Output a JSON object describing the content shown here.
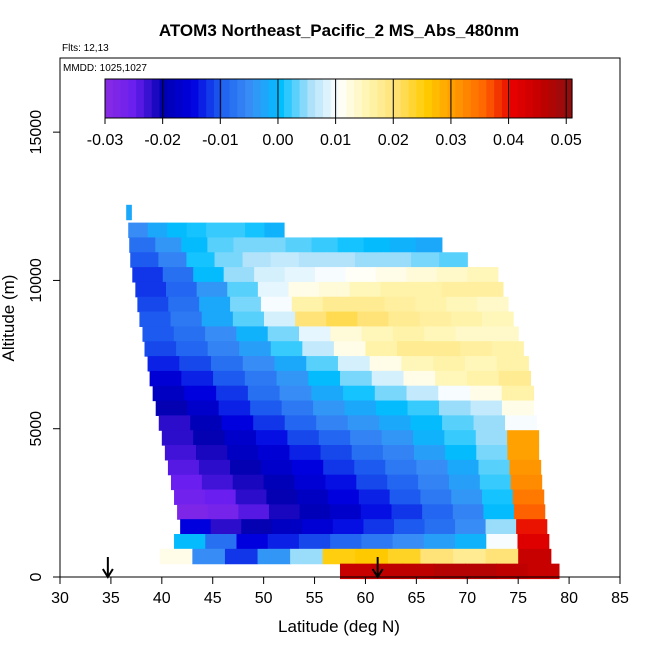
{
  "chart_data": {
    "type": "heatmap",
    "title": "ATOM3 Northeast_Pacific_2 MS_Abs_480nm",
    "annotations": [
      "Flts: 12,13",
      "MMDD: 1025,1027"
    ],
    "xlabel": "Latitude (deg N)",
    "ylabel": "Altitude (m)",
    "xlim": [
      30,
      85
    ],
    "ylim": [
      0,
      17500
    ],
    "x_ticks": [
      30,
      35,
      40,
      45,
      50,
      55,
      60,
      65,
      70,
      75,
      80,
      85
    ],
    "y_ticks": [
      0,
      5000,
      10000,
      15000
    ],
    "colorbar": {
      "range": [
        -0.03,
        0.051
      ],
      "ticks": [
        -0.03,
        -0.02,
        -0.01,
        0.0,
        0.01,
        0.02,
        0.03,
        0.04,
        0.05
      ],
      "tick_labels": [
        "-0.03",
        "-0.02",
        "-0.01",
        "0.00",
        "0.01",
        "0.02",
        "0.03",
        "0.04",
        "0.05"
      ],
      "colors": [
        "#8a2be2",
        "#6a1ff0",
        "#0000b0",
        "#0000e0",
        "#1e5ff0",
        "#3a8ff5",
        "#00bfff",
        "#a8e0fa",
        "#ffffff",
        "#fff5b0",
        "#ffe070",
        "#ffcc00",
        "#ff9900",
        "#ff6600",
        "#e60000",
        "#c00000",
        "#8b1010"
      ]
    },
    "arrows_latitude": [
      34.7,
      61.2
    ],
    "rows": [
      {
        "alt": 12300,
        "lat_min": 36.5,
        "lat_max": 37,
        "values": [
          -0.002
        ]
      },
      {
        "alt": 11700,
        "lat_min": 36.7,
        "lat_max": 52,
        "values": [
          -0.005,
          -0.002,
          0.0,
          0.001,
          0.002,
          0.002,
          0.001,
          -0.001
        ]
      },
      {
        "alt": 11200,
        "lat_min": 36.8,
        "lat_max": 67.5,
        "values": [
          -0.008,
          -0.004,
          0.0,
          0.003,
          0.004,
          0.004,
          0.003,
          0.002,
          0.001,
          0.0,
          -0.001,
          -0.002
        ]
      },
      {
        "alt": 10700,
        "lat_min": 36.9,
        "lat_max": 70,
        "values": [
          -0.01,
          -0.006,
          0.001,
          0.004,
          0.006,
          0.007,
          0.006,
          0.006,
          0.005,
          0.005,
          0.004,
          0.003
        ]
      },
      {
        "alt": 10200,
        "lat_min": 37.1,
        "lat_max": 73,
        "values": [
          -0.012,
          -0.008,
          0.0,
          0.005,
          0.008,
          0.009,
          0.01,
          0.011,
          0.012,
          0.013,
          0.014,
          0.015
        ]
      },
      {
        "alt": 9700,
        "lat_min": 37.4,
        "lat_max": 73.5,
        "values": [
          -0.012,
          -0.009,
          -0.004,
          0.003,
          0.009,
          0.012,
          0.013,
          0.015,
          0.016,
          0.016,
          0.017,
          0.017
        ]
      },
      {
        "alt": 9200,
        "lat_min": 37.6,
        "lat_max": 74,
        "values": [
          -0.011,
          -0.008,
          -0.002,
          0.004,
          0.01,
          0.016,
          0.018,
          0.018,
          0.017,
          0.016,
          0.015,
          0.014
        ]
      },
      {
        "alt": 8700,
        "lat_min": 37.8,
        "lat_max": 74.5,
        "values": [
          -0.01,
          -0.007,
          -0.002,
          0.003,
          0.008,
          0.02,
          0.022,
          0.02,
          0.018,
          0.017,
          0.016,
          0.015
        ]
      },
      {
        "alt": 8200,
        "lat_min": 38.1,
        "lat_max": 75,
        "values": [
          -0.01,
          -0.008,
          -0.005,
          -0.001,
          0.004,
          0.009,
          0.013,
          0.015,
          0.016,
          0.015,
          0.014,
          0.014
        ]
      },
      {
        "alt": 7700,
        "lat_min": 38.3,
        "lat_max": 75.5,
        "values": [
          -0.011,
          -0.009,
          -0.006,
          -0.003,
          0.002,
          0.007,
          0.012,
          0.016,
          0.018,
          0.018,
          0.017,
          0.016
        ]
      },
      {
        "alt": 7200,
        "lat_min": 38.6,
        "lat_max": 76,
        "values": [
          -0.013,
          -0.011,
          -0.008,
          -0.005,
          -0.002,
          0.003,
          0.008,
          0.012,
          0.015,
          0.016,
          0.015,
          0.016
        ]
      },
      {
        "alt": 6700,
        "lat_min": 38.8,
        "lat_max": 76.2,
        "values": [
          -0.016,
          -0.013,
          -0.01,
          -0.007,
          -0.004,
          0.0,
          0.004,
          0.008,
          0.012,
          0.015,
          0.016,
          0.018
        ]
      },
      {
        "alt": 6200,
        "lat_min": 39.1,
        "lat_max": 76.5,
        "values": [
          -0.018,
          -0.015,
          -0.012,
          -0.008,
          -0.005,
          -0.002,
          0.001,
          0.004,
          0.007,
          0.01,
          0.012,
          0.016
        ]
      },
      {
        "alt": 5700,
        "lat_min": 39.4,
        "lat_max": 76.5,
        "values": [
          -0.02,
          -0.017,
          -0.013,
          -0.01,
          -0.007,
          -0.004,
          -0.002,
          0.0,
          0.002,
          0.005,
          0.007,
          0.012
        ]
      },
      {
        "alt": 5200,
        "lat_min": 39.7,
        "lat_max": 76.8,
        "values": [
          -0.022,
          -0.019,
          -0.015,
          -0.012,
          -0.009,
          -0.006,
          -0.004,
          -0.002,
          0.0,
          0.003,
          0.005,
          0.01
        ]
      },
      {
        "alt": 4700,
        "lat_min": 40.0,
        "lat_max": 77,
        "values": [
          -0.022,
          -0.02,
          -0.017,
          -0.014,
          -0.011,
          -0.009,
          -0.006,
          -0.004,
          -0.001,
          0.002,
          0.005,
          0.03
        ]
      },
      {
        "alt": 4200,
        "lat_min": 40.3,
        "lat_max": 77,
        "values": [
          -0.023,
          -0.021,
          -0.018,
          -0.016,
          -0.013,
          -0.011,
          -0.008,
          -0.006,
          -0.003,
          0.0,
          0.004,
          0.03
        ]
      },
      {
        "alt": 3700,
        "lat_min": 40.6,
        "lat_max": 77.2,
        "values": [
          -0.024,
          -0.022,
          -0.02,
          -0.017,
          -0.015,
          -0.012,
          -0.01,
          -0.007,
          -0.005,
          -0.002,
          0.003,
          0.031
        ]
      },
      {
        "alt": 3200,
        "lat_min": 40.9,
        "lat_max": 77.3,
        "values": [
          -0.025,
          -0.023,
          -0.021,
          -0.019,
          -0.016,
          -0.014,
          -0.011,
          -0.009,
          -0.006,
          -0.003,
          0.002,
          0.032
        ]
      },
      {
        "alt": 2700,
        "lat_min": 41.2,
        "lat_max": 77.5,
        "values": [
          -0.026,
          -0.025,
          -0.022,
          -0.02,
          -0.018,
          -0.015,
          -0.013,
          -0.01,
          -0.007,
          -0.004,
          0.001,
          0.034
        ]
      },
      {
        "alt": 2200,
        "lat_min": 41.5,
        "lat_max": 77.6,
        "values": [
          -0.028,
          -0.027,
          -0.024,
          -0.021,
          -0.019,
          -0.017,
          -0.014,
          -0.012,
          -0.009,
          -0.006,
          0.0,
          0.036
        ]
      },
      {
        "alt": 1700,
        "lat_min": 41.8,
        "lat_max": 77.8,
        "values": [
          -0.015,
          -0.022,
          -0.02,
          -0.018,
          -0.016,
          -0.014,
          -0.012,
          -0.01,
          -0.008,
          -0.005,
          0.005,
          0.04
        ]
      },
      {
        "alt": 1200,
        "lat_min": 41.2,
        "lat_max": 78,
        "values": [
          0.0,
          -0.008,
          -0.015,
          -0.013,
          -0.011,
          -0.009,
          -0.007,
          -0.005,
          -0.003,
          -0.001,
          0.01,
          0.042
        ]
      },
      {
        "alt": 700,
        "lat_min": 39.8,
        "lat_max": 78.2,
        "values": [
          0.012,
          -0.005,
          -0.012,
          -0.004,
          0.005,
          0.025,
          0.026,
          0.024,
          0.02,
          0.018,
          0.02,
          0.045
        ]
      },
      {
        "alt": 200,
        "lat_min": 57.5,
        "lat_max": 79,
        "values": [
          0.045,
          0.046,
          0.046,
          0.047,
          0.047,
          0.046,
          0.045
        ]
      }
    ]
  }
}
